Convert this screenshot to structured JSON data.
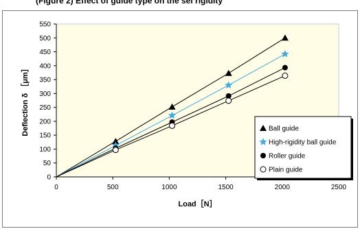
{
  "figure": {
    "title": "(Figure 2) Effect of guide type on the sel rigidity"
  },
  "chart_data": {
    "type": "line",
    "title": "(Figure 2) Effect of guide type on the sel rigidity",
    "xlabel": "Load［N］",
    "ylabel": "Deflection δ ［μm］",
    "xlim": [
      0,
      2500
    ],
    "ylim": [
      0,
      550
    ],
    "xticks": [
      0,
      500,
      1000,
      1500,
      2000,
      2500
    ],
    "yticks": [
      0,
      50,
      100,
      150,
      200,
      250,
      300,
      350,
      400,
      450,
      500,
      550
    ],
    "grid": false,
    "legend_position": "right",
    "x": [
      0,
      525,
      1025,
      1525,
      2025
    ],
    "series": [
      {
        "name": "Ball guide",
        "values": [
          0,
          128,
          252,
          373,
          500
        ],
        "color": "#000000",
        "marker": "triangle"
      },
      {
        "name": "High-rigidity ball guide",
        "values": [
          0,
          113,
          221,
          330,
          442
        ],
        "color": "#3fa9e0",
        "marker": "star"
      },
      {
        "name": "Roller guide",
        "values": [
          0,
          103,
          197,
          291,
          393
        ],
        "color": "#000000",
        "marker": "filled-circle"
      },
      {
        "name": "Plain guide",
        "values": [
          0,
          97,
          184,
          274,
          364
        ],
        "color": "#000000",
        "marker": "open-circle"
      }
    ]
  },
  "colors": {
    "plot_background": "#fffde6",
    "axis": "#000000",
    "frame": "#7a7a7a",
    "accent_series": "#3fa9e0"
  }
}
